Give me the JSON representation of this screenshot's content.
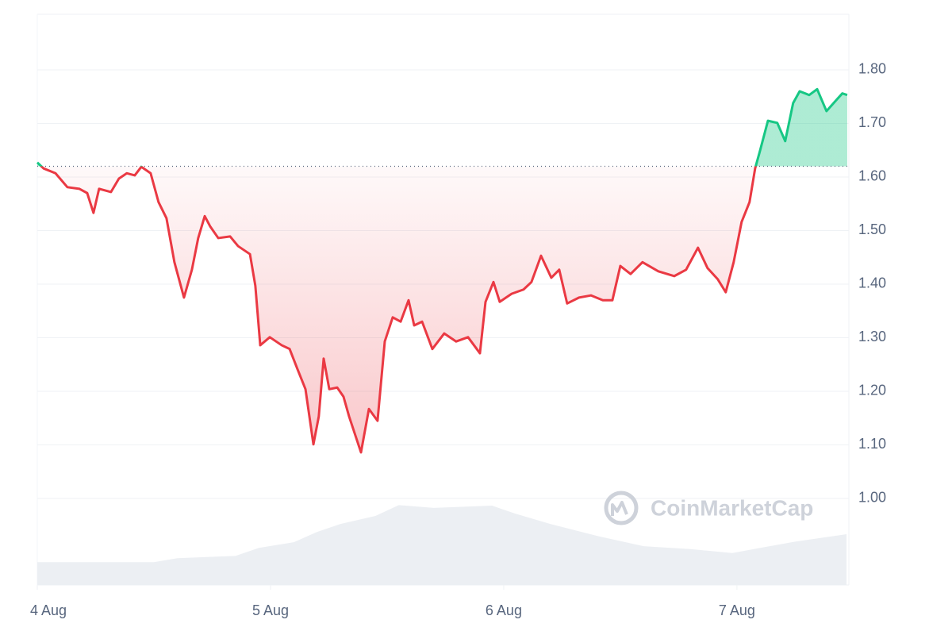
{
  "chart_data": {
    "type": "line",
    "x": [
      0,
      0.027,
      0.078,
      0.129,
      0.18,
      0.214,
      0.241,
      0.265,
      0.316,
      0.35,
      0.384,
      0.418,
      0.446,
      0.486,
      0.52,
      0.554,
      0.588,
      0.629,
      0.663,
      0.69,
      0.718,
      0.741,
      0.776,
      0.827,
      0.861,
      0.912,
      0.935,
      0.956,
      0.997,
      1.048,
      1.082,
      1.116,
      1.15,
      1.184,
      1.207,
      1.228,
      1.252,
      1.286,
      1.313,
      1.337,
      1.388,
      1.422,
      1.459,
      1.49,
      1.524,
      1.558,
      1.592,
      1.616,
      1.65,
      1.694,
      1.745,
      1.796,
      1.847,
      1.898,
      1.922,
      1.956,
      1.983,
      2.034,
      2.085,
      2.119,
      2.16,
      2.204,
      2.238,
      2.272,
      2.323,
      2.374,
      2.425,
      2.466,
      2.5,
      2.544,
      2.595,
      2.663,
      2.731,
      2.782,
      2.833,
      2.874,
      2.918,
      2.952,
      2.986,
      3.02,
      3.054,
      3.078,
      3.099,
      3.133,
      3.173,
      3.207,
      3.241,
      3.269,
      3.31,
      3.344,
      3.384,
      3.429,
      3.452,
      3.473
    ],
    "values": [
      1.627,
      1.616,
      1.607,
      1.581,
      1.578,
      1.57,
      1.533,
      1.578,
      1.572,
      1.597,
      1.607,
      1.603,
      1.619,
      1.607,
      1.553,
      1.523,
      1.441,
      1.375,
      1.427,
      1.486,
      1.527,
      1.508,
      1.486,
      1.489,
      1.471,
      1.456,
      1.397,
      1.286,
      1.301,
      1.286,
      1.279,
      1.241,
      1.204,
      1.101,
      1.153,
      1.261,
      1.204,
      1.207,
      1.19,
      1.153,
      1.086,
      1.167,
      1.145,
      1.293,
      1.338,
      1.33,
      1.37,
      1.323,
      1.33,
      1.279,
      1.308,
      1.293,
      1.301,
      1.271,
      1.367,
      1.404,
      1.367,
      1.382,
      1.39,
      1.404,
      1.453,
      1.412,
      1.427,
      1.364,
      1.375,
      1.379,
      1.37,
      1.37,
      1.434,
      1.419,
      1.441,
      1.424,
      1.415,
      1.427,
      1.468,
      1.43,
      1.409,
      1.385,
      1.441,
      1.516,
      1.553,
      1.616,
      1.649,
      1.705,
      1.701,
      1.667,
      1.738,
      1.76,
      1.753,
      1.764,
      1.723,
      1.745,
      1.756,
      1.753
    ],
    "baseline": 1.62,
    "up_color": "#16c784",
    "down_color": "#ea3943",
    "xlim": [
      0,
      3.48
    ],
    "ylim": [
      0.8385,
      1.9037
    ],
    "xticks": [
      {
        "value": 0,
        "label": "4 Aug"
      },
      {
        "value": 1,
        "label": "5 Aug"
      },
      {
        "value": 2,
        "label": "6 Aug"
      },
      {
        "value": 3,
        "label": "7 Aug"
      }
    ],
    "yticks": [
      {
        "value": 1.0,
        "label": "1.00"
      },
      {
        "value": 1.1,
        "label": "1.10"
      },
      {
        "value": 1.2,
        "label": "1.20"
      },
      {
        "value": 1.3,
        "label": "1.30"
      },
      {
        "value": 1.4,
        "label": "1.40"
      },
      {
        "value": 1.5,
        "label": "1.50"
      },
      {
        "value": 1.6,
        "label": "1.60"
      },
      {
        "value": 1.7,
        "label": "1.70"
      },
      {
        "value": 1.8,
        "label": "1.80"
      }
    ],
    "grid": true,
    "volume": {
      "x": [
        0,
        0.5,
        0.6,
        0.85,
        0.95,
        1.1,
        1.2,
        1.3,
        1.45,
        1.55,
        1.7,
        1.95,
        2.05,
        2.2,
        2.4,
        2.6,
        2.8,
        2.98,
        3.1,
        3.25,
        3.47
      ],
      "values": [
        4.0,
        4.0,
        4.7,
        5.1,
        6.5,
        7.5,
        9.3,
        10.7,
        12.1,
        14.0,
        13.5,
        13.9,
        12.5,
        10.7,
        8.6,
        6.8,
        6.3,
        5.6,
        6.5,
        7.6,
        8.9
      ],
      "color": "#eceff3"
    },
    "y2lim": [
      0,
      100
    ],
    "watermark": "CoinMarketCap"
  }
}
